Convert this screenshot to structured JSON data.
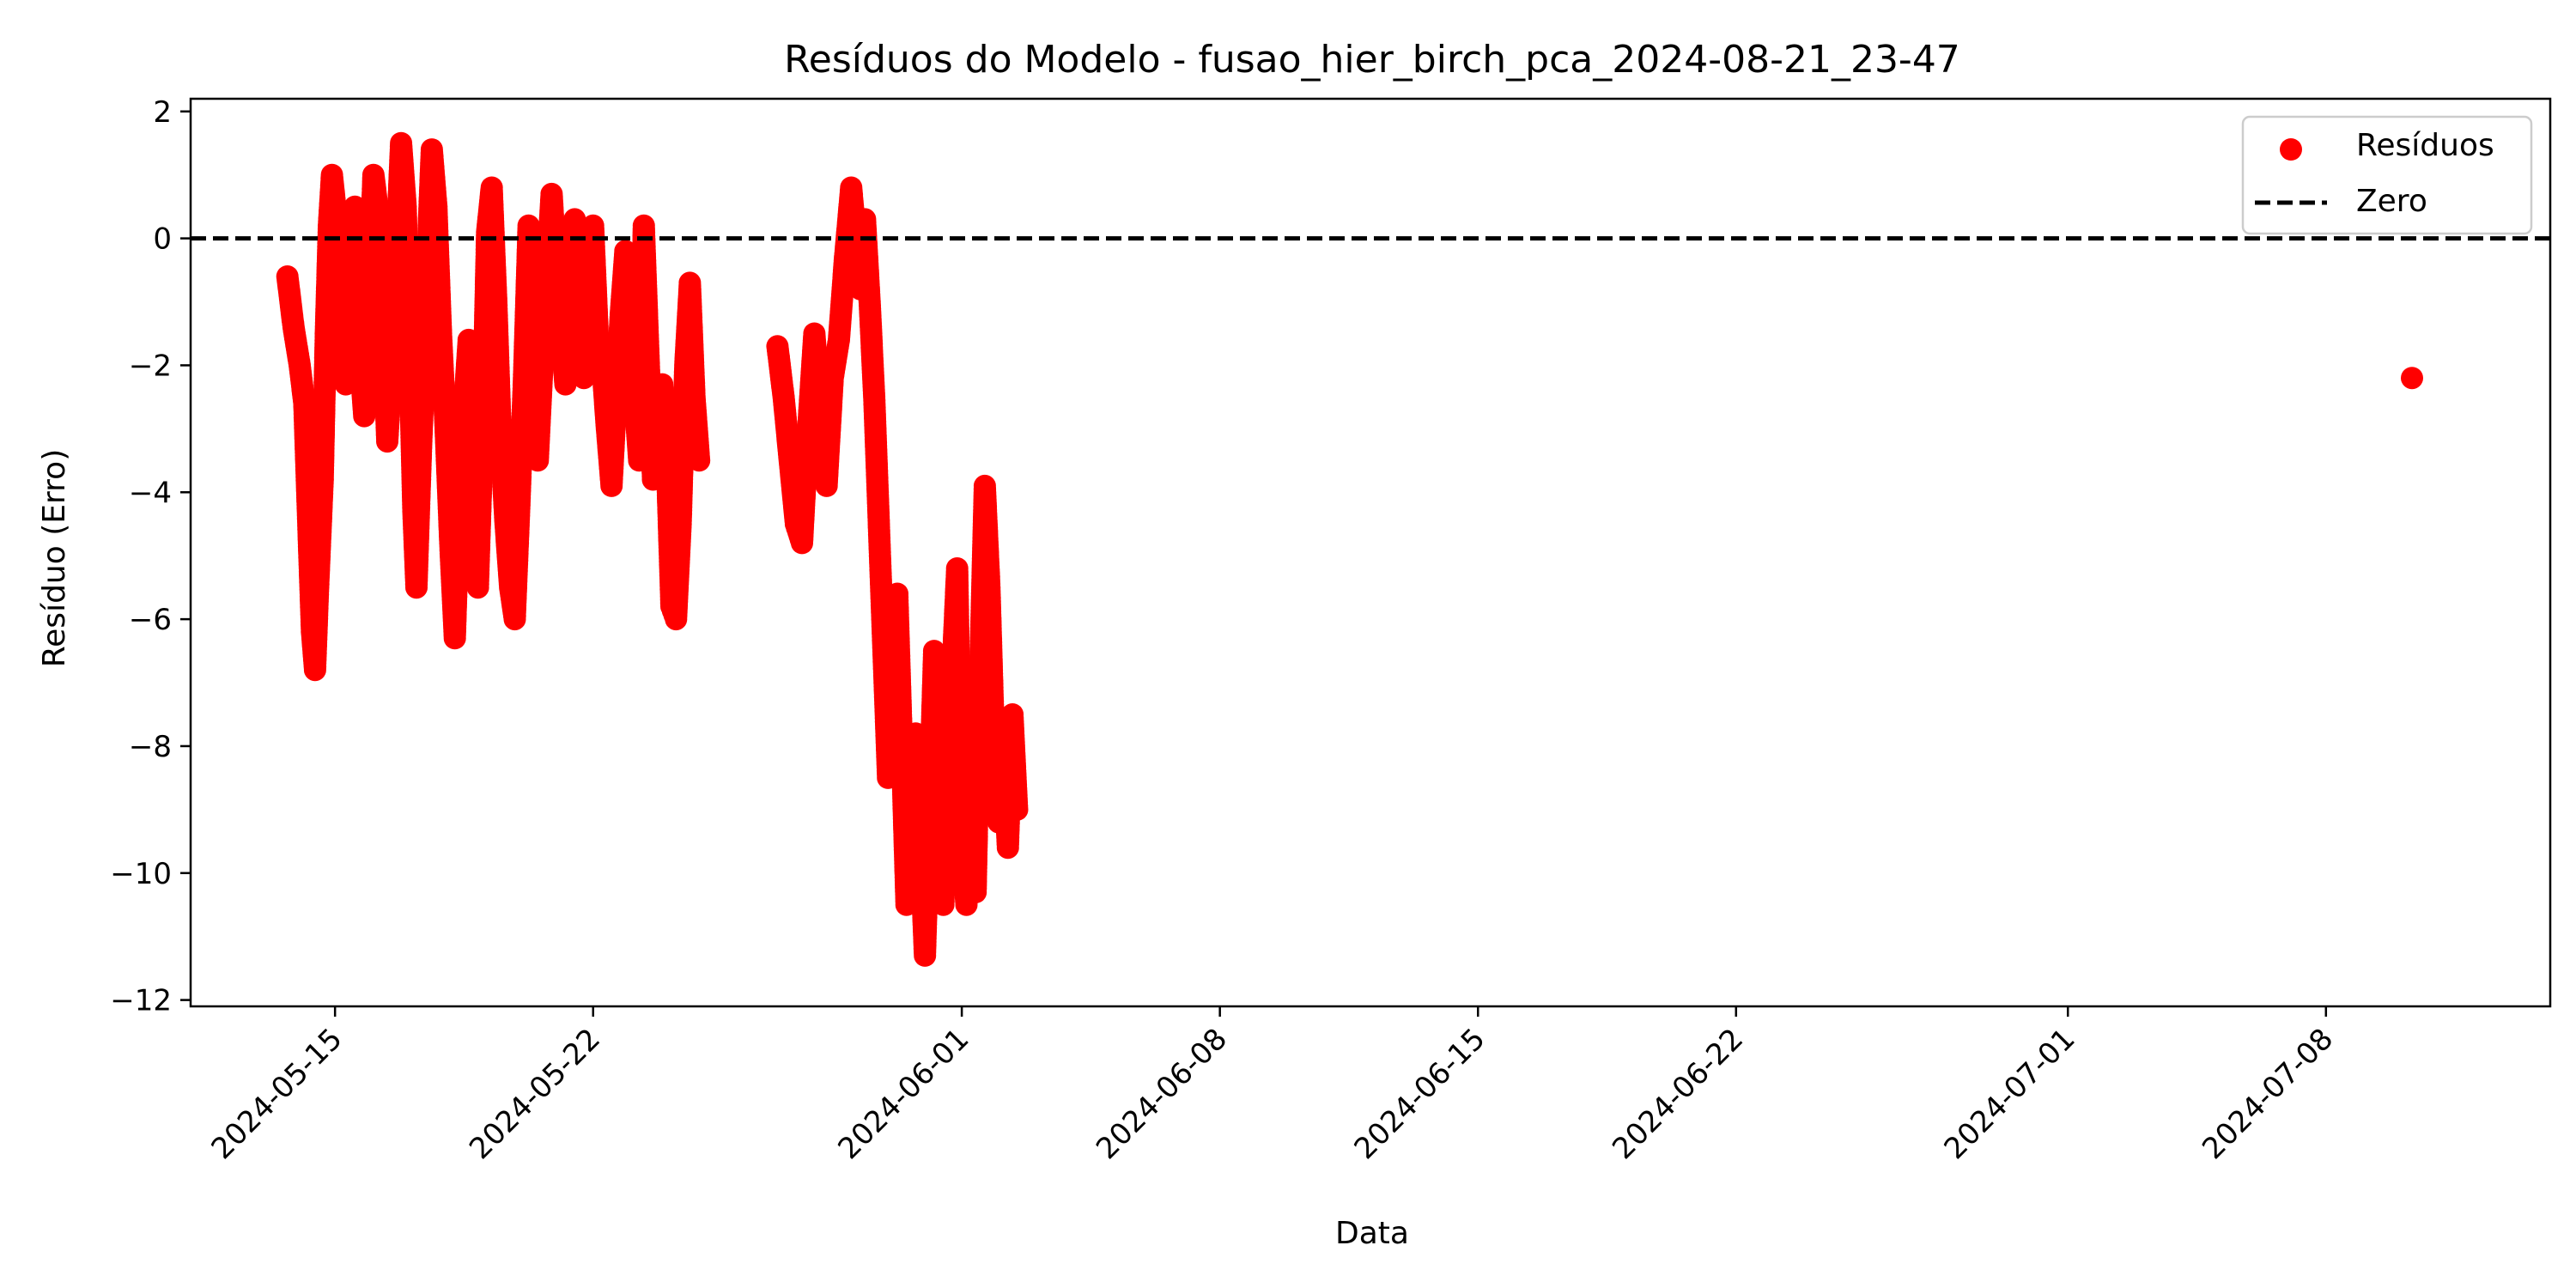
{
  "chart_data": {
    "type": "scatter",
    "title": "Resíduos do Modelo - fusao_hier_birch_pca_2024-08-21_23-47",
    "xlabel": "Data",
    "ylabel": "Resíduo (Erro)",
    "xlim": [
      "2024-05-11T02:00",
      "2024-07-14T02:00"
    ],
    "ylim": [
      -12.1,
      2.2
    ],
    "x_ticks": [
      "2024-05-15",
      "2024-05-22",
      "2024-06-01",
      "2024-06-08",
      "2024-06-15",
      "2024-06-22",
      "2024-07-01",
      "2024-07-08"
    ],
    "y_ticks": [
      2,
      0,
      -2,
      -4,
      -6,
      -8,
      -10,
      -12
    ],
    "grid": false,
    "legend": {
      "position": "top-right",
      "entries": [
        {
          "label": "Resíduos",
          "kind": "marker"
        },
        {
          "label": "Zero",
          "kind": "dashed-line"
        }
      ]
    },
    "zero_line": {
      "y": 0,
      "color": "#000000",
      "style": "dashed",
      "label": "Zero"
    },
    "marker_color": "#ff0000",
    "series": [
      {
        "name": "Resíduos",
        "color": "#ff0000",
        "points": [
          [
            "2024-05-13T17:00",
            -0.6
          ],
          [
            "2024-05-13T21:00",
            -1.4
          ],
          [
            "2024-05-14T01:00",
            -2.0
          ],
          [
            "2024-05-14T04:00",
            -2.6
          ],
          [
            "2024-05-14T07:00",
            -4.8
          ],
          [
            "2024-05-14T09:00",
            -6.2
          ],
          [
            "2024-05-14T11:00",
            -6.8
          ],
          [
            "2024-05-14T13:00",
            -5.5
          ],
          [
            "2024-05-14T16:00",
            -3.8
          ],
          [
            "2024-05-14T18:00",
            -1.5
          ],
          [
            "2024-05-14T20:00",
            0.2
          ],
          [
            "2024-05-14T22:00",
            1.0
          ],
          [
            "2024-05-15T01:00",
            0.3
          ],
          [
            "2024-05-15T04:00",
            -1.0
          ],
          [
            "2024-05-15T07:00",
            -2.3
          ],
          [
            "2024-05-15T10:00",
            -0.5
          ],
          [
            "2024-05-15T13:00",
            0.5
          ],
          [
            "2024-05-15T16:00",
            -1.8
          ],
          [
            "2024-05-15T19:00",
            -2.8
          ],
          [
            "2024-05-15T22:00",
            -1.0
          ],
          [
            "2024-05-16T01:00",
            1.0
          ],
          [
            "2024-05-16T04:00",
            0.4
          ],
          [
            "2024-05-16T07:00",
            -1.2
          ],
          [
            "2024-05-16T10:00",
            -3.2
          ],
          [
            "2024-05-16T13:00",
            -2.0
          ],
          [
            "2024-05-16T16:00",
            -0.2
          ],
          [
            "2024-05-16T19:00",
            1.5
          ],
          [
            "2024-05-16T22:00",
            0.5
          ],
          [
            "2024-05-17T01:00",
            -2.3
          ],
          [
            "2024-05-17T03:00",
            -4.3
          ],
          [
            "2024-05-17T05:00",
            -5.5
          ],
          [
            "2024-05-17T08:00",
            -3.3
          ],
          [
            "2024-05-17T11:00",
            -1.5
          ],
          [
            "2024-05-17T13:00",
            0.2
          ],
          [
            "2024-05-17T15:00",
            1.4
          ],
          [
            "2024-05-17T18:00",
            0.5
          ],
          [
            "2024-05-17T21:00",
            -1.5
          ],
          [
            "2024-05-18T00:00",
            -3.0
          ],
          [
            "2024-05-18T03:00",
            -4.8
          ],
          [
            "2024-05-18T06:00",
            -6.3
          ],
          [
            "2024-05-18T09:00",
            -4.0
          ],
          [
            "2024-05-18T12:00",
            -2.7
          ],
          [
            "2024-05-18T15:00",
            -1.6
          ],
          [
            "2024-05-18T18:00",
            -3.5
          ],
          [
            "2024-05-18T21:00",
            -5.5
          ],
          [
            "2024-05-19T00:00",
            -3.2
          ],
          [
            "2024-05-19T03:00",
            0.1
          ],
          [
            "2024-05-19T06:00",
            0.8
          ],
          [
            "2024-05-19T09:00",
            -1.0
          ],
          [
            "2024-05-19T12:00",
            -3.2
          ],
          [
            "2024-05-19T15:00",
            -4.5
          ],
          [
            "2024-05-19T18:00",
            -5.5
          ],
          [
            "2024-05-19T21:00",
            -6.0
          ],
          [
            "2024-05-20T00:00",
            -4.2
          ],
          [
            "2024-05-20T03:00",
            -2.2
          ],
          [
            "2024-05-20T06:00",
            0.2
          ],
          [
            "2024-05-20T09:00",
            -1.5
          ],
          [
            "2024-05-20T12:00",
            -3.5
          ],
          [
            "2024-05-20T15:00",
            -2.0
          ],
          [
            "2024-05-20T18:00",
            -0.5
          ],
          [
            "2024-05-20T21:00",
            0.7
          ],
          [
            "2024-05-21T00:00",
            -0.5
          ],
          [
            "2024-05-21T03:00",
            -1.5
          ],
          [
            "2024-05-21T06:00",
            -2.3
          ],
          [
            "2024-05-21T09:00",
            -0.8
          ],
          [
            "2024-05-21T12:00",
            0.3
          ],
          [
            "2024-05-21T15:00",
            -1.3
          ],
          [
            "2024-05-21T18:00",
            -2.2
          ],
          [
            "2024-05-21T21:00",
            -0.3
          ],
          [
            "2024-05-22T00:00",
            0.2
          ],
          [
            "2024-05-22T03:00",
            -1.5
          ],
          [
            "2024-05-22T06:00",
            -2.0
          ],
          [
            "2024-05-22T09:00",
            -3.0
          ],
          [
            "2024-05-22T12:00",
            -3.9
          ],
          [
            "2024-05-22T15:00",
            -2.5
          ],
          [
            "2024-05-22T18:00",
            -1.2
          ],
          [
            "2024-05-22T21:00",
            -0.2
          ],
          [
            "2024-05-23T00:00",
            -1.0
          ],
          [
            "2024-05-23T03:00",
            -2.5
          ],
          [
            "2024-05-23T06:00",
            -3.5
          ],
          [
            "2024-05-23T09:00",
            0.2
          ],
          [
            "2024-05-23T12:00",
            -1.8
          ],
          [
            "2024-05-23T15:00",
            -3.8
          ],
          [
            "2024-05-23T18:00",
            -3.3
          ],
          [
            "2024-05-23T21:00",
            -2.3
          ],
          [
            "2024-05-24T00:00",
            -3.5
          ],
          [
            "2024-05-24T03:00",
            -5.8
          ],
          [
            "2024-05-24T06:00",
            -6.0
          ],
          [
            "2024-05-24T09:00",
            -4.5
          ],
          [
            "2024-05-24T12:00",
            -2.0
          ],
          [
            "2024-05-24T15:00",
            -0.7
          ],
          [
            "2024-05-24T18:00",
            -2.5
          ],
          [
            "2024-05-24T21:00",
            -3.5
          ],
          [
            "2024-05-27T00:00",
            -1.7
          ],
          [
            "2024-05-27T04:00",
            -2.5
          ],
          [
            "2024-05-27T08:00",
            -3.5
          ],
          [
            "2024-05-27T12:00",
            -4.5
          ],
          [
            "2024-05-27T16:00",
            -4.8
          ],
          [
            "2024-05-27T20:00",
            -3.0
          ],
          [
            "2024-05-28T00:00",
            -1.5
          ],
          [
            "2024-05-28T04:00",
            -2.8
          ],
          [
            "2024-05-28T08:00",
            -3.9
          ],
          [
            "2024-05-28T12:00",
            -2.2
          ],
          [
            "2024-05-28T16:00",
            -1.6
          ],
          [
            "2024-05-28T20:00",
            -0.3
          ],
          [
            "2024-05-29T00:00",
            0.8
          ],
          [
            "2024-05-29T03:00",
            0.0
          ],
          [
            "2024-05-29T06:00",
            -0.8
          ],
          [
            "2024-05-29T09:00",
            0.3
          ],
          [
            "2024-05-29T12:00",
            -1.0
          ],
          [
            "2024-05-29T15:00",
            -2.5
          ],
          [
            "2024-05-29T18:00",
            -4.5
          ],
          [
            "2024-05-29T21:00",
            -6.5
          ],
          [
            "2024-05-30T00:00",
            -8.5
          ],
          [
            "2024-05-30T03:00",
            -7.0
          ],
          [
            "2024-05-30T06:00",
            -5.6
          ],
          [
            "2024-05-30T09:00",
            -8.0
          ],
          [
            "2024-05-30T12:00",
            -10.5
          ],
          [
            "2024-05-30T15:00",
            -9.0
          ],
          [
            "2024-05-30T18:00",
            -7.8
          ],
          [
            "2024-05-30T21:00",
            -9.5
          ],
          [
            "2024-05-31T00:00",
            -11.3
          ],
          [
            "2024-05-31T03:00",
            -9.0
          ],
          [
            "2024-05-31T06:00",
            -6.5
          ],
          [
            "2024-05-31T09:00",
            -8.8
          ],
          [
            "2024-05-31T12:00",
            -10.5
          ],
          [
            "2024-05-31T15:00",
            -8.5
          ],
          [
            "2024-05-31T18:00",
            -6.8
          ],
          [
            "2024-05-31T21:00",
            -5.2
          ],
          [
            "2024-06-01T00:00",
            -9.5
          ],
          [
            "2024-06-01T03:00",
            -10.5
          ],
          [
            "2024-06-01T06:00",
            -7.5
          ],
          [
            "2024-06-01T09:00",
            -10.3
          ],
          [
            "2024-06-01T12:00",
            -6.8
          ],
          [
            "2024-06-01T15:00",
            -3.9
          ],
          [
            "2024-06-01T18:00",
            -5.5
          ],
          [
            "2024-06-01T21:00",
            -8.0
          ],
          [
            "2024-06-02T00:00",
            -9.2
          ],
          [
            "2024-06-02T03:00",
            -8.0
          ],
          [
            "2024-06-02T06:00",
            -9.6
          ],
          [
            "2024-06-02T09:00",
            -7.5
          ],
          [
            "2024-06-02T12:00",
            -9.0
          ],
          [
            "2024-07-10T08:00",
            -2.2
          ]
        ]
      }
    ]
  }
}
